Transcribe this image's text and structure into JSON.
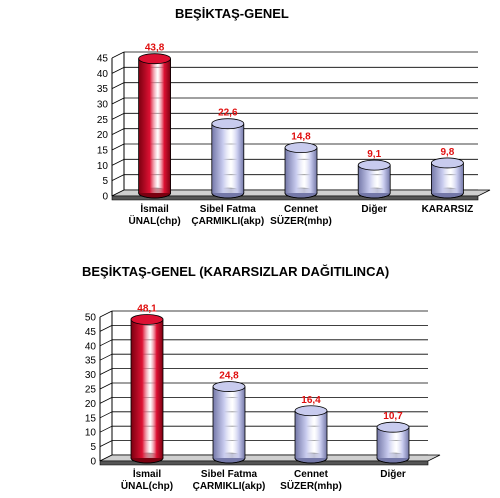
{
  "colors": {
    "highlight": "#dd1133",
    "highlight_dark": "#7a0010",
    "normal": "#c8cbee",
    "normal_dark": "#7478a8",
    "value_label": "#e01010",
    "floor": "#555555"
  },
  "chart_data": [
    {
      "type": "bar",
      "title": "BEŞİKTAŞ-GENEL",
      "categories": [
        [
          "İsmail",
          "ÜNAL(chp)"
        ],
        [
          "Sibel Fatma",
          "ÇARMIKLI(akp)"
        ],
        [
          "Cennet",
          "SÜZER(mhp)"
        ],
        [
          "Diğer"
        ],
        [
          "KARARSIZ"
        ]
      ],
      "values": [
        43.8,
        22.6,
        14.8,
        9.1,
        9.8
      ],
      "value_labels": [
        "43,8",
        "22,6",
        "14,8",
        "9,1",
        "9,8"
      ],
      "ylim": [
        0,
        45
      ],
      "yticks": [
        0,
        5,
        10,
        15,
        20,
        25,
        30,
        35,
        40,
        45
      ],
      "grid": true,
      "highlight_index": 0
    },
    {
      "type": "bar",
      "title": "BEŞİKTAŞ-GENEL (KARARSIZLAR DAĞITILINCA)",
      "categories": [
        [
          "İsmail",
          "ÜNAL(chp)"
        ],
        [
          "Sibel Fatma",
          "ÇARMIKLI(akp)"
        ],
        [
          "Cennet",
          "SÜZER(mhp)"
        ],
        [
          "Diğer"
        ]
      ],
      "values": [
        48.1,
        24.8,
        16.4,
        10.7
      ],
      "value_labels": [
        "48,1",
        "24,8",
        "16,4",
        "10,7"
      ],
      "ylim": [
        0,
        50
      ],
      "yticks": [
        0,
        5,
        10,
        15,
        20,
        25,
        30,
        35,
        40,
        45,
        50
      ],
      "grid": true,
      "highlight_index": 0
    }
  ]
}
